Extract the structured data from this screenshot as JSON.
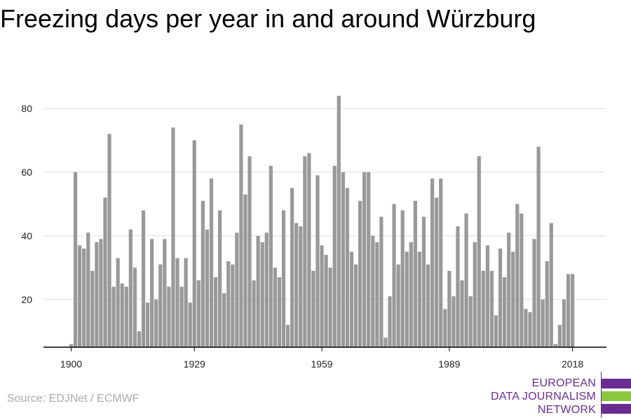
{
  "title": "Freezing days per year in and around Würzburg",
  "source": "Source: EDJNet / ECMWF",
  "logo": {
    "lines": [
      "EUROPEAN",
      "DATA JOURNALISM",
      "NETWORK"
    ],
    "colors": {
      "purple": "#6a2c91",
      "green": "#8dc63f"
    }
  },
  "chart_data": {
    "type": "bar",
    "title": "Freezing days per year in and around Würzburg",
    "xlabel": "",
    "ylabel": "",
    "bar_color": "#999999",
    "grid": true,
    "xticks": [
      1900,
      1929,
      1959,
      1989,
      2018
    ],
    "yticks": [
      20,
      40,
      60,
      80
    ],
    "ylim": [
      5,
      88
    ],
    "x": [
      1900,
      1901,
      1902,
      1903,
      1904,
      1905,
      1906,
      1907,
      1908,
      1909,
      1910,
      1911,
      1912,
      1913,
      1914,
      1915,
      1916,
      1917,
      1918,
      1919,
      1920,
      1921,
      1922,
      1923,
      1924,
      1925,
      1926,
      1927,
      1928,
      1929,
      1930,
      1931,
      1932,
      1933,
      1934,
      1935,
      1936,
      1937,
      1938,
      1939,
      1940,
      1941,
      1942,
      1943,
      1944,
      1945,
      1946,
      1947,
      1948,
      1949,
      1950,
      1951,
      1952,
      1953,
      1954,
      1955,
      1956,
      1957,
      1958,
      1959,
      1960,
      1961,
      1962,
      1963,
      1964,
      1965,
      1966,
      1967,
      1968,
      1969,
      1970,
      1971,
      1972,
      1973,
      1974,
      1975,
      1976,
      1977,
      1978,
      1979,
      1980,
      1981,
      1982,
      1983,
      1984,
      1985,
      1986,
      1987,
      1988,
      1989,
      1990,
      1991,
      1992,
      1993,
      1994,
      1995,
      1996,
      1997,
      1998,
      1999,
      2000,
      2001,
      2002,
      2003,
      2004,
      2005,
      2006,
      2007,
      2008,
      2009,
      2010,
      2011,
      2012,
      2013,
      2014,
      2015,
      2016,
      2017,
      2018
    ],
    "values": [
      6,
      60,
      37,
      36,
      41,
      29,
      38,
      39,
      52,
      72,
      24,
      33,
      25,
      24,
      42,
      30,
      10,
      48,
      19,
      39,
      20,
      31,
      39,
      24,
      74,
      33,
      24,
      33,
      19,
      70,
      26,
      51,
      42,
      58,
      27,
      48,
      22,
      32,
      31,
      41,
      75,
      53,
      65,
      26,
      40,
      38,
      41,
      62,
      30,
      27,
      48,
      12,
      55,
      44,
      43,
      65,
      66,
      29,
      59,
      37,
      34,
      30,
      62,
      84,
      60,
      55,
      35,
      31,
      51,
      60,
      60,
      40,
      38,
      46,
      8,
      21,
      50,
      31,
      48,
      35,
      38,
      51,
      35,
      46,
      31,
      58,
      52,
      58,
      17,
      29,
      21,
      43,
      26,
      47,
      21,
      38,
      65,
      29,
      37,
      29,
      15,
      36,
      27,
      41,
      35,
      50,
      47,
      17,
      16,
      39,
      68,
      20,
      32,
      44,
      6,
      12,
      20,
      28,
      28
    ]
  }
}
